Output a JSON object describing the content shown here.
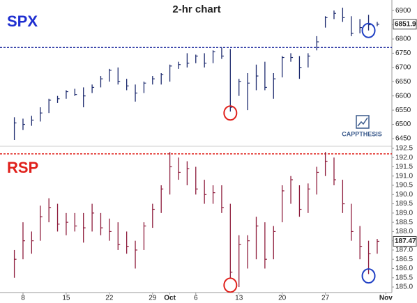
{
  "chart_data": [
    {
      "type": "ohlc",
      "title": "2-hr chart",
      "name": "SPX",
      "color": "#1c2a6e",
      "x": [
        0,
        1,
        2,
        3,
        4,
        5,
        6,
        7,
        8,
        9,
        10,
        11,
        12,
        13,
        14,
        15,
        16,
        17,
        18,
        19,
        20,
        21,
        22,
        23,
        24,
        25,
        26,
        27,
        28,
        29,
        30,
        31,
        32,
        33,
        34,
        35,
        36,
        37,
        38,
        39,
        40,
        41,
        42
      ],
      "high": [
        6525,
        6520,
        6530,
        6560,
        6590,
        6600,
        6620,
        6625,
        6630,
        6640,
        6670,
        6695,
        6700,
        6660,
        6640,
        6650,
        6670,
        6680,
        6710,
        6720,
        6750,
        6745,
        6750,
        6760,
        6770,
        6765,
        6660,
        6680,
        6710,
        6720,
        6680,
        6740,
        6750,
        6740,
        6750,
        6810,
        6880,
        6900,
        6910,
        6880,
        6870,
        6885,
        6860
      ],
      "low": [
        6445,
        6480,
        6495,
        6510,
        6540,
        6575,
        6590,
        6600,
        6560,
        6610,
        6630,
        6650,
        6640,
        6620,
        6580,
        6610,
        6640,
        6640,
        6650,
        6695,
        6700,
        6715,
        6700,
        6715,
        6730,
        6545,
        6600,
        6550,
        6620,
        6620,
        6590,
        6665,
        6720,
        6660,
        6700,
        6760,
        6840,
        6870,
        6860,
        6810,
        6820,
        6830,
        6845
      ],
      "close": [
        6505,
        6500,
        6515,
        6540,
        6585,
        6590,
        6615,
        6605,
        6600,
        6630,
        6660,
        6690,
        6650,
        6635,
        6610,
        6645,
        6660,
        6675,
        6705,
        6710,
        6715,
        6740,
        6715,
        6755,
        6740,
        6560,
        6650,
        6645,
        6670,
        6630,
        6660,
        6735,
        6735,
        6700,
        6740,
        6790,
        6875,
        6890,
        6875,
        6820,
        6840,
        6850,
        6851.9
      ],
      "ylim": [
        6423,
        6937
      ],
      "yticks": [
        6450,
        6500,
        6550,
        6600,
        6650,
        6700,
        6750,
        6800,
        6850,
        6900
      ],
      "xlim": [
        -1.5,
        43.7
      ],
      "level": {
        "value": 6770,
        "color": "#1c2a9e"
      },
      "circles": [
        {
          "x": 25,
          "y": 6540,
          "color": "#e0201b"
        },
        {
          "x": 41,
          "y": 6830,
          "color": "#1f3fc4"
        }
      ],
      "logo": "CAPPTHESIS"
    },
    {
      "type": "ohlc",
      "name": "RSP",
      "color": "#8e1c3c",
      "x": [
        0,
        1,
        2,
        3,
        4,
        5,
        6,
        7,
        8,
        9,
        10,
        11,
        12,
        13,
        14,
        15,
        16,
        17,
        18,
        19,
        20,
        21,
        22,
        23,
        24,
        25,
        26,
        27,
        28,
        29,
        30,
        31,
        32,
        33,
        34,
        35,
        36,
        37,
        38,
        39,
        40,
        41,
        42
      ],
      "high": [
        187.0,
        188.5,
        188.0,
        189.4,
        189.8,
        189.5,
        189.0,
        189.0,
        189.0,
        189.5,
        189.0,
        188.7,
        188.5,
        188.0,
        187.5,
        188.5,
        189.5,
        190.5,
        192.3,
        192.0,
        191.8,
        191.5,
        190.8,
        190.5,
        190.5,
        189.5,
        187.8,
        187.8,
        188.8,
        188.5,
        188.3,
        190.5,
        191.0,
        190.5,
        190.6,
        191.5,
        192.3,
        192.0,
        190.8,
        189.5,
        188.3,
        187.5,
        187.6
      ],
      "low": [
        185.5,
        186.5,
        186.8,
        187.5,
        188.5,
        188.0,
        187.8,
        188.0,
        187.4,
        188.0,
        187.8,
        187.5,
        187.0,
        186.8,
        186.0,
        187.0,
        188.2,
        189.0,
        190.0,
        190.8,
        190.5,
        190.0,
        189.5,
        189.5,
        189.0,
        185.5,
        185.0,
        186.0,
        186.5,
        186.0,
        186.5,
        188.5,
        189.5,
        188.8,
        189.0,
        190.0,
        191.0,
        190.5,
        189.0,
        187.5,
        186.5,
        185.7,
        186.8
      ],
      "close": [
        186.5,
        187.5,
        187.5,
        188.8,
        189.3,
        188.4,
        188.5,
        188.3,
        188.2,
        189.0,
        188.2,
        188.0,
        187.3,
        187.2,
        187.0,
        188.3,
        189.2,
        190.3,
        191.5,
        191.2,
        191.4,
        190.3,
        190.0,
        190.1,
        189.3,
        185.8,
        187.3,
        187.5,
        188.3,
        186.5,
        188.0,
        190.2,
        190.8,
        189.2,
        190.3,
        191.2,
        191.8,
        190.8,
        189.5,
        188.0,
        187.2,
        186.8,
        187.47
      ],
      "ylim": [
        184.7,
        192.61
      ],
      "yticks": [
        {
          "value": 185,
          "label": "185.0"
        },
        185.5,
        {
          "value": 186,
          "label": "186.0"
        },
        186.5,
        {
          "value": 187,
          "label": "187.0"
        },
        187.5,
        {
          "value": 188,
          "label": "188.0"
        },
        188.5,
        {
          "value": 189,
          "label": "189.0"
        },
        189.5,
        {
          "value": 190,
          "label": "190.0"
        },
        190.5,
        {
          "value": 191,
          "label": "191.0"
        },
        191.5,
        {
          "value": 192,
          "label": "192.0"
        },
        192.5
      ],
      "xlim": [
        -1.5,
        43.7
      ],
      "xticks": [
        {
          "value": 1,
          "label": "8"
        },
        {
          "value": 6,
          "label": "15"
        },
        {
          "value": 11,
          "label": "22"
        },
        {
          "value": 16,
          "label": "29"
        },
        {
          "value": 18,
          "label": "Oct"
        },
        {
          "value": 21,
          "label": "6"
        },
        {
          "value": 26,
          "label": "13"
        },
        {
          "value": 31,
          "label": "20"
        },
        {
          "value": 36,
          "label": "27"
        },
        {
          "value": 43,
          "label": "Nov"
        }
      ],
      "level": {
        "value": 192.2,
        "color": "#e0201b"
      },
      "circles": [
        {
          "x": 25,
          "y": 185.1,
          "color": "#e0201b"
        },
        {
          "x": 41,
          "y": 185.6,
          "color": "#1f3fc4"
        }
      ]
    }
  ]
}
